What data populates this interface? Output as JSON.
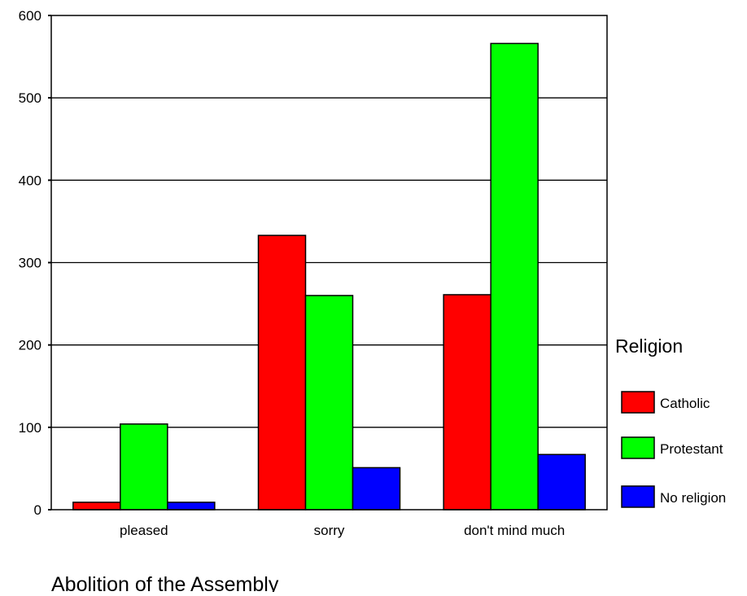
{
  "chart_data": {
    "type": "bar",
    "categories": [
      "pleased",
      "sorry",
      "don't mind much"
    ],
    "series": [
      {
        "name": "Catholic",
        "color": "#ff0000",
        "values": [
          9,
          333,
          261
        ]
      },
      {
        "name": "Protestant",
        "color": "#00ff00",
        "values": [
          104,
          260,
          566
        ]
      },
      {
        "name": "No religion",
        "color": "#0000ff",
        "values": [
          9,
          51,
          67
        ]
      }
    ],
    "title": "",
    "xlabel": "Abolition of the Assembly",
    "ylabel": "",
    "ylim": [
      0,
      600
    ],
    "yticks": [
      0,
      100,
      200,
      300,
      400,
      500,
      600
    ],
    "grid": true,
    "legend": {
      "title": "Religion",
      "position": "right"
    }
  }
}
